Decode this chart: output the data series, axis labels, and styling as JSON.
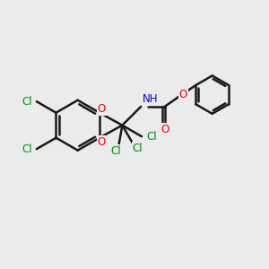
{
  "bg_color": "#ebebeb",
  "bond_color": "#1a1a1a",
  "bond_width": 1.8,
  "atom_colors": {
    "N": "#0000ee",
    "O": "#ee0000",
    "Cl_green": "#009900",
    "Cl_tri": "#008800"
  },
  "font_size": 8.5,
  "figsize": [
    3.0,
    3.0
  ],
  "dpi": 100
}
